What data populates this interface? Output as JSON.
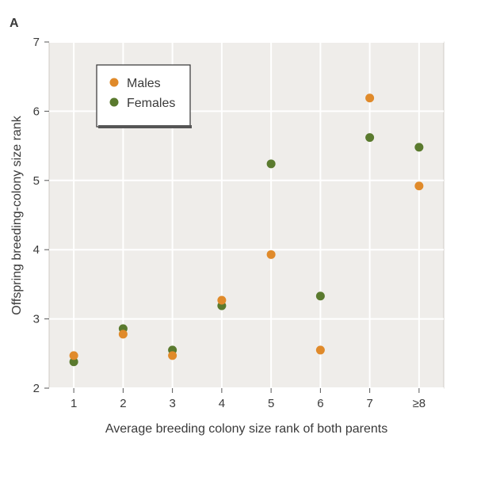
{
  "chart_data": {
    "type": "scatter",
    "panel_label": "A",
    "xlabel": "Average breeding colony size rank of both parents",
    "ylabel": "Offspring breeding-colony size rank",
    "categories": [
      "1",
      "2",
      "3",
      "4",
      "5",
      "6",
      "7",
      "≥8"
    ],
    "ylim": [
      2,
      7
    ],
    "yticks": [
      2,
      3,
      4,
      5,
      6,
      7
    ],
    "grid": true,
    "legend_position": "top-left",
    "series": [
      {
        "name": "Females",
        "color": "#5a7a2e",
        "values": [
          2.38,
          2.86,
          2.55,
          3.19,
          5.24,
          3.33,
          5.62,
          5.48
        ]
      },
      {
        "name": "Males",
        "color": "#e08a2a",
        "values": [
          2.47,
          2.78,
          2.47,
          3.27,
          3.93,
          2.55,
          6.19,
          4.92
        ]
      }
    ],
    "legend_order": [
      "Males",
      "Females"
    ],
    "colors": {
      "background": "#efedea",
      "grid": "#ffffff",
      "frame": "#cfcbc5"
    }
  }
}
